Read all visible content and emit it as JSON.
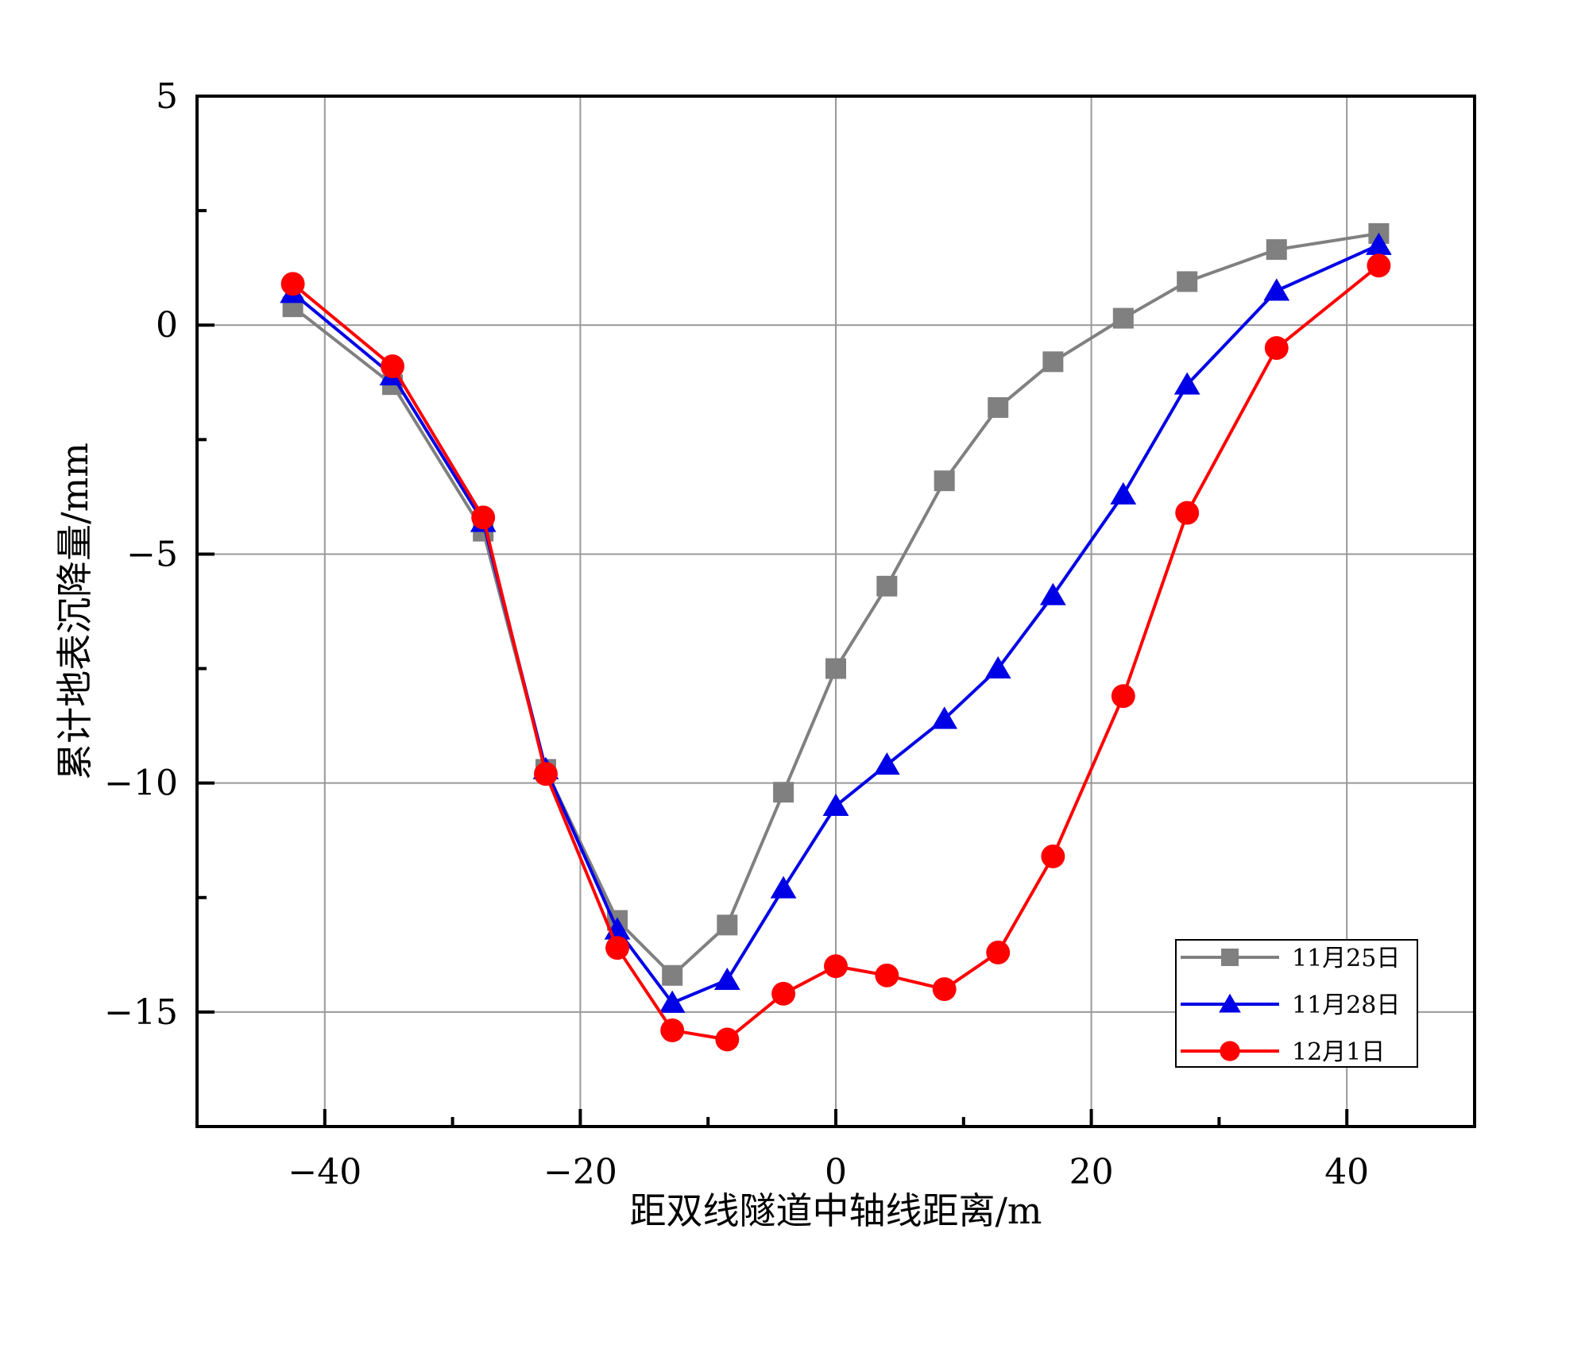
{
  "chart_data": {
    "type": "line",
    "title": "",
    "xlabel": "距双线隧道中轴线距离/m",
    "ylabel": "累计地表沉降量/mm",
    "xlim": [
      -50,
      50
    ],
    "ylim": [
      -17.5,
      5
    ],
    "x_ticks": [
      -40,
      -20,
      0,
      20,
      40
    ],
    "x_tick_labels": [
      "−40",
      "−20",
      "0",
      "20",
      "40"
    ],
    "x_minor_ticks": [
      -30,
      -10,
      10,
      30
    ],
    "y_ticks": [
      5,
      0,
      -5,
      -10,
      -15
    ],
    "y_tick_labels": [
      "5",
      "0",
      "−5",
      "−10",
      "−15"
    ],
    "y_minor_ticks": [
      2.5,
      -2.5,
      -7.5,
      -12.5
    ],
    "grid": true,
    "legend_position": "bottom-right",
    "series": [
      {
        "name": "11月25日",
        "color": "#808080",
        "marker": "square",
        "x": [
          -42.5,
          -34.7,
          -27.6,
          -22.7,
          -17.1,
          -12.8,
          -8.5,
          -4.1,
          0,
          4,
          8.5,
          12.7,
          17,
          22.5,
          27.5,
          34.5,
          42.5
        ],
        "y": [
          0.4,
          -1.3,
          -4.5,
          -9.7,
          -13.0,
          -14.2,
          -13.1,
          -10.2,
          -7.5,
          -5.7,
          -3.4,
          -1.8,
          -0.8,
          0.15,
          0.95,
          1.65,
          2.0
        ]
      },
      {
        "name": "11月28日",
        "color": "#0000e6",
        "marker": "triangle",
        "x": [
          -42.5,
          -34.7,
          -27.6,
          -22.7,
          -17.1,
          -12.8,
          -8.5,
          -4.1,
          0,
          4,
          8.5,
          12.7,
          17,
          22.5,
          27.5,
          34.5,
          42.5
        ],
        "y": [
          0.7,
          -1.1,
          -4.3,
          -9.7,
          -13.2,
          -14.8,
          -14.3,
          -12.3,
          -10.5,
          -9.6,
          -8.6,
          -7.5,
          -5.9,
          -3.7,
          -1.3,
          0.75,
          1.75
        ]
      },
      {
        "name": "12月1日",
        "color": "#ff0000",
        "marker": "circle",
        "x": [
          -42.5,
          -34.7,
          -27.6,
          -22.7,
          -17.1,
          -12.8,
          -8.5,
          -4.1,
          0,
          4,
          8.5,
          12.7,
          17,
          22.5,
          27.5,
          34.5,
          42.5
        ],
        "y": [
          0.9,
          -0.9,
          -4.2,
          -9.8,
          -13.6,
          -15.4,
          -15.6,
          -14.6,
          -14.0,
          -14.2,
          -14.5,
          -13.7,
          -11.6,
          -8.1,
          -4.1,
          -0.5,
          1.3
        ]
      }
    ]
  }
}
